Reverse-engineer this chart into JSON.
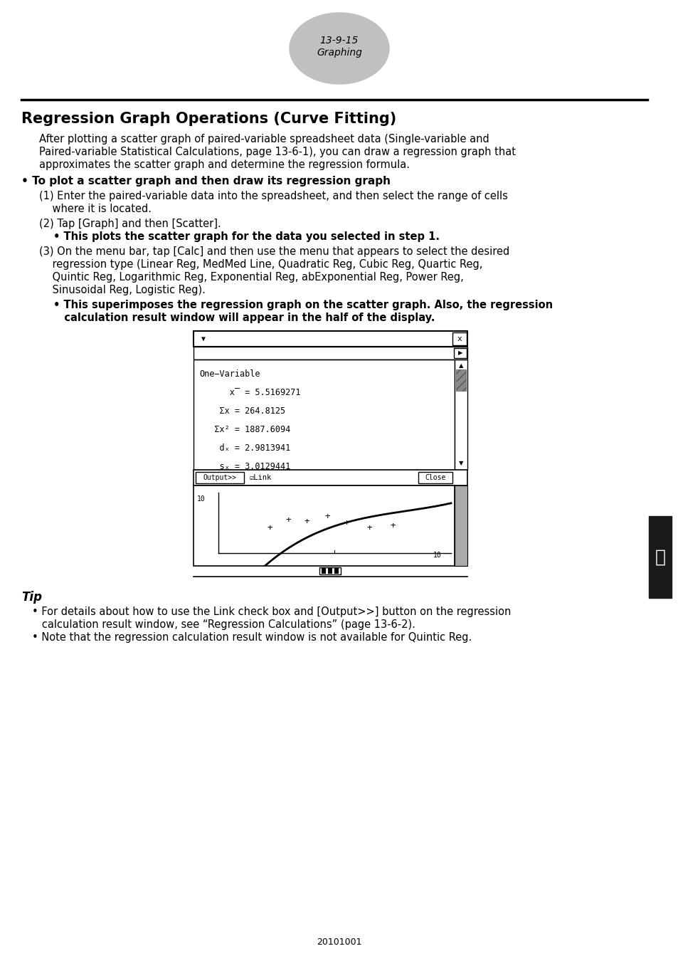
{
  "page_num": "13-9-15",
  "page_section": "Graphing",
  "title": "Regression Graph Operations (Curve Fitting)",
  "intro_lines": [
    "After plotting a scatter graph of paired-variable spreadsheet data (Single-variable and",
    "Paired-variable Statistical Calculations, page 13-6-1), you can draw a regression graph that",
    "approximates the scatter graph and determine the regression formula."
  ],
  "bullet_title": "• To plot a scatter graph and then draw its regression graph",
  "step1_lines": [
    "(1) Enter the paired-variable data into the spreadsheet, and then select the range of cells",
    "    where it is located."
  ],
  "step2_line": "(2) Tap [Graph] and then [Scatter].",
  "step2_bullet": "• This plots the scatter graph for the data you selected in step 1.",
  "step3_lines": [
    "(3) On the menu bar, tap [Calc] and then use the menu that appears to select the desired",
    "    regression type (Linear Reg, MedMed Line, Quadratic Reg, Cubic Reg, Quartic Reg,",
    "    Quintic Reg, Logarithmic Reg, Exponential Reg, abExponential Reg, Power Reg,",
    "    Sinusoidal Reg, Logistic Reg)."
  ],
  "step3_bullet_lines": [
    "• This superimposes the regression graph on the scatter graph. Also, the regression",
    "   calculation result window will appear in the half of the display."
  ],
  "tip_title": "Tip",
  "tip_bullet1_lines": [
    "• For details about how to use the Link check box and [Output>>] button on the regression",
    "   calculation result window, see “Regression Calculations” (page 13-6-2)."
  ],
  "tip_bullet2": "• Note that the regression calculation result window is not available for Quintic Reg.",
  "footer": "20101001",
  "bg": "#ffffff"
}
